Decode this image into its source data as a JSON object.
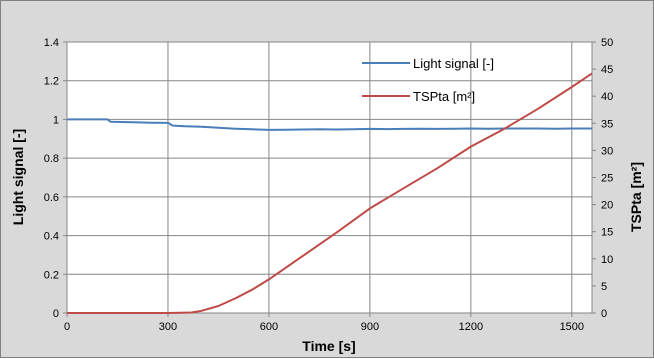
{
  "chart_data": {
    "type": "line",
    "xlabel": "Time [s]",
    "ylabel_left": "Light signal [-]",
    "ylabel_right": "TSPta [m²]",
    "xlim": [
      0,
      1560
    ],
    "ylim_left": [
      0,
      1.4
    ],
    "ylim_right": [
      0,
      50
    ],
    "x_ticks": [
      "0",
      "300",
      "600",
      "900",
      "1200",
      "1500"
    ],
    "y_left_ticks": [
      "0",
      "0.2",
      "0.4",
      "0.6",
      "0.8",
      "1",
      "1.2",
      "1.4"
    ],
    "y_right_ticks": [
      "0",
      "5",
      "10",
      "15",
      "20",
      "25",
      "30",
      "35",
      "40",
      "45",
      "50"
    ],
    "grid": true,
    "legend_position": "top-right",
    "series": [
      {
        "name": "Light signal [-]",
        "axis": "left",
        "color": "#4a7ebb",
        "x": [
          0,
          60,
          120,
          130,
          200,
          250,
          300,
          305,
          310,
          315,
          350,
          400,
          450,
          500,
          550,
          600,
          650,
          700,
          750,
          800,
          850,
          900,
          950,
          1000,
          1050,
          1100,
          1150,
          1200,
          1250,
          1300,
          1350,
          1400,
          1450,
          1500,
          1560
        ],
        "y": [
          1.0,
          1.0,
          1.0,
          0.988,
          0.985,
          0.983,
          0.982,
          0.978,
          0.972,
          0.968,
          0.965,
          0.962,
          0.957,
          0.952,
          0.949,
          0.946,
          0.947,
          0.948,
          0.949,
          0.948,
          0.949,
          0.951,
          0.95,
          0.951,
          0.952,
          0.951,
          0.952,
          0.953,
          0.952,
          0.953,
          0.953,
          0.953,
          0.952,
          0.953,
          0.953
        ]
      },
      {
        "name": "TSPta [m²]",
        "axis": "right",
        "color": "#be4b48",
        "x": [
          0,
          300,
          370,
          400,
          450,
          500,
          550,
          600,
          700,
          800,
          900,
          1000,
          1100,
          1200,
          1300,
          1400,
          1500,
          1560
        ],
        "y": [
          0,
          0,
          0.1,
          0.4,
          1.3,
          2.7,
          4.3,
          6.2,
          10.5,
          14.8,
          19.3,
          23.0,
          26.7,
          30.7,
          34.0,
          37.7,
          41.7,
          44.2
        ]
      }
    ]
  }
}
